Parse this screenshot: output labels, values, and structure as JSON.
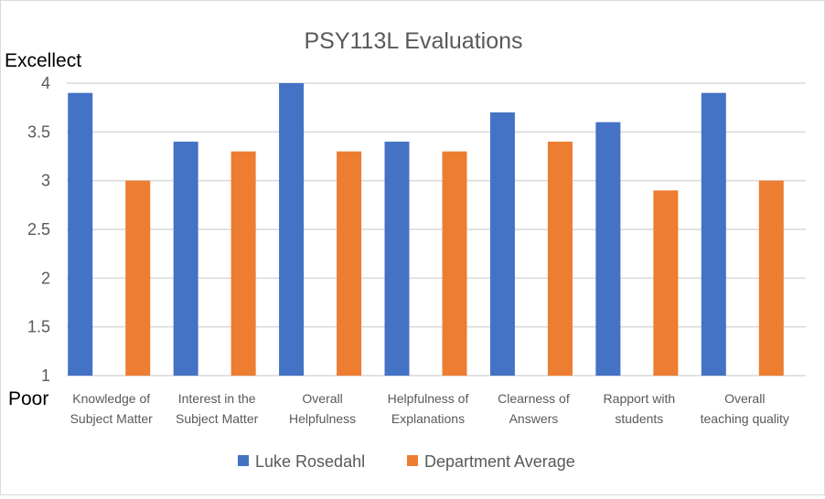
{
  "chart_data": {
    "type": "bar",
    "title": "PSY113L Evaluations",
    "xlabel": "",
    "ylabel": "",
    "ylim": [
      1,
      4
    ],
    "yticks": [
      "1",
      "1.5",
      "2",
      "2.5",
      "3",
      "3.5",
      "4"
    ],
    "y_top_annotation": "Excellect",
    "y_bottom_annotation": "Poor",
    "grid": true,
    "legend_position": "bottom",
    "categories": [
      [
        "Knowledge of",
        "Subject Matter"
      ],
      [
        "Interest in the",
        "Subject Matter"
      ],
      [
        "Overall",
        "Helpfulness"
      ],
      [
        "Helpfulness of",
        "Explanations"
      ],
      [
        "Clearness of",
        "Answers"
      ],
      [
        "Rapport with",
        "students"
      ],
      [
        "Overall",
        "teaching quality"
      ]
    ],
    "series": [
      {
        "name": "Luke Rosedahl",
        "color": "#4472C4",
        "values": [
          3.9,
          3.4,
          4.0,
          3.4,
          3.7,
          3.6,
          3.9
        ]
      },
      {
        "name": "Department Average",
        "color": "#ED7D31",
        "values": [
          3.0,
          3.3,
          3.3,
          3.3,
          3.4,
          2.9,
          3.0
        ]
      }
    ]
  }
}
